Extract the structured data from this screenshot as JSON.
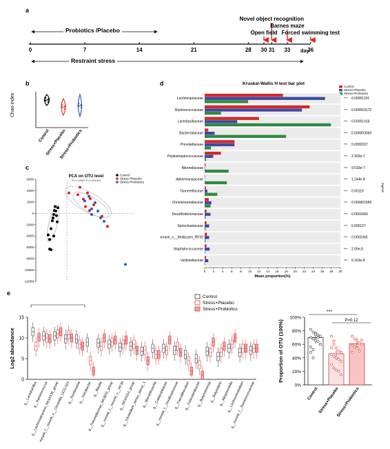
{
  "panel_labels": {
    "a": "a",
    "b": "b",
    "c": "c",
    "d": "d",
    "e": "e"
  },
  "timeline": {
    "probiotics_label": "Probiotics /Placebo",
    "restraint_label": "Restraint stress",
    "day_ticks": [
      "0",
      "7",
      "14",
      "21",
      "28",
      "30",
      "31",
      "33",
      "36"
    ],
    "day_unit": "day",
    "events": [
      {
        "label": "Open field",
        "day": 30
      },
      {
        "label": "Novel object recognition",
        "day": 31
      },
      {
        "label": "Barnes maze",
        "day": 33
      },
      {
        "label": "Forced swimming test",
        "day": 36
      }
    ],
    "arrow_color": "#d62728"
  },
  "chart_data": [
    {
      "type": "violin",
      "panel": "b",
      "ylabel": "Chao index",
      "categories": [
        "Control",
        "Stress+Placebo",
        "Stress+Probiotics"
      ],
      "colors": [
        "#000000",
        "#e63a3a",
        "#3a57a8"
      ]
    },
    {
      "type": "scatter",
      "panel": "c",
      "title": "PCA on OTU level",
      "subtitle": "R²=0.4546, P=0.001000",
      "ylim": [
        -12000,
        6000
      ],
      "yticks": [
        "6000",
        "4000",
        "2000",
        "0",
        "-2000",
        "-4000",
        "-6000",
        "-8000",
        "-10000",
        "-12000"
      ],
      "legend": [
        "Control",
        "Stress+Placebo",
        "Stress+Probiotics"
      ],
      "legend_colors": [
        "#000000",
        "#e02020",
        "#2060c0"
      ]
    },
    {
      "type": "bar",
      "panel": "d",
      "title": "Kruskal-Wallis H test bar plot",
      "xlabel": "Mean proportion(%)",
      "xlim": [
        0,
        30
      ],
      "xticks": [
        "0",
        "2",
        "4",
        "6",
        "8",
        "10",
        "12",
        "14",
        "16",
        "18",
        "20",
        "22",
        "24",
        "26",
        "28",
        "30"
      ],
      "legend_side": "legend",
      "categories": [
        "Lachnospiraceae",
        "Ruminococcaceae",
        "Lactobacillaceae",
        "Bacteroidaceae",
        "Prevotellaceae",
        "Peptostreptococcaceae",
        "Rikenellaceae",
        "Akkermansiaceae",
        "Tannerellaceae",
        "Christensenellaceae",
        "Desulfovibrionaceae",
        "Spirochaetaceae",
        "norank_o__Mollicutes_RF39",
        "Staphylococcaceae",
        "Veillonellaceae"
      ],
      "p_values": [
        "0.00001191",
        "0.000003172",
        "0.00001416",
        "0.000003063",
        "0.0002937",
        "2.303e-7",
        "9.533e-7",
        "1.244e-8",
        "0.00119",
        "0.000001656",
        "0.0001669",
        "0.000127",
        "0.0002365",
        "2.05e-8",
        "5.163e-8"
      ],
      "series": [
        {
          "name": "Control",
          "color": "#d62728",
          "values": [
            17.3,
            23.2,
            12.0,
            0.8,
            6.6,
            3.6,
            0.2,
            0.1,
            0.3,
            0.9,
            0.4,
            0.4,
            0.5,
            0.4,
            0.3
          ]
        },
        {
          "name": "Stress+Placebo",
          "color": "#3c4aa3",
          "values": [
            26.6,
            21.5,
            7.2,
            2.2,
            6.6,
            1.9,
            0.1,
            0.05,
            0.6,
            1.5,
            1.3,
            1.0,
            1.0,
            1.1,
            0.8
          ]
        },
        {
          "name": "Stress+Probiotics",
          "color": "#2e8b3e",
          "values": [
            9.6,
            3.6,
            27.9,
            18.0,
            1.4,
            0.3,
            5.3,
            4.9,
            2.8,
            1.3,
            0.2,
            0.2,
            0.2,
            0.1,
            0.1
          ]
        }
      ]
    },
    {
      "type": "box",
      "panel": "e-left",
      "ylabel": "Log2 abundance",
      "ylim": [
        0,
        15
      ],
      "yticks": [
        "15",
        "10",
        "5",
        "0"
      ],
      "legend": [
        "Control",
        "Stress+Placebo",
        "Stress+Probiotics"
      ],
      "categories": [
        "g__Lactobacillus",
        "g__Ruminococcus",
        "g__Lachnospiraceae_NK4A136_group",
        "norank_f__norank_o__Clostridia_UCG-014",
        "g__Romboutsia",
        "g__Turicibacter",
        "g__Blautia",
        "g__Prevotellaceae_NK3B31_group",
        "g__norank_f__norank_o__RF39",
        "g__NK4A214_group",
        "g__Clostridium_sensu_stricto_1",
        "g__Marvinbryantia",
        "g__Colidextribacter",
        "g__norank_f__Oscillospiraceae",
        "g__Faecalibaculum",
        "g__Fusicatenibacter",
        "g__Butyricimonas",
        "g__Butyrivibrio",
        "g__Alloprevotella",
        "g__Lachnoclostridium",
        "g__norank_f__Ruminococcaceae"
      ],
      "medians": [
        [
          11.5,
          8.0,
          10.2
        ],
        [
          10.5,
          10.0,
          9.8
        ],
        [
          10.5,
          11.0,
          11.5
        ],
        [
          9.8,
          10.8,
          10.0
        ],
        [
          9.8,
          8.5,
          8.0
        ],
        [
          9.0,
          4.5,
          2.0
        ],
        [
          8.8,
          8.0,
          10.0
        ],
        [
          8.5,
          9.0,
          9.5
        ],
        [
          7.8,
          8.5,
          9.5
        ],
        [
          8.0,
          8.5,
          7.0
        ],
        [
          6.8,
          7.0,
          4.5
        ],
        [
          7.5,
          6.0,
          6.0
        ],
        [
          7.5,
          7.0,
          9.5
        ],
        [
          7.0,
          8.0,
          6.5
        ],
        [
          6.0,
          4.5,
          2.0
        ],
        [
          5.0,
          3.5,
          1.0
        ],
        [
          6.8,
          6.5,
          9.0
        ],
        [
          5.5,
          6.5,
          8.0
        ],
        [
          7.5,
          8.5,
          10.0
        ],
        [
          6.5,
          7.5,
          7.5
        ],
        [
          7.0,
          7.5,
          7.5
        ]
      ]
    },
    {
      "type": "bar",
      "panel": "e-right",
      "ylabel": "Proportion of OTU (100%)",
      "ylim": [
        0,
        100
      ],
      "yticks": [
        "100%",
        "80%",
        "60%",
        "40%",
        "20%",
        "0%"
      ],
      "categories": [
        "Control",
        "Stress+Placebo",
        "Stress+Probiotics"
      ],
      "values": [
        70,
        46,
        61
      ],
      "annotations": [
        "***",
        "P=0.12"
      ]
    }
  ]
}
